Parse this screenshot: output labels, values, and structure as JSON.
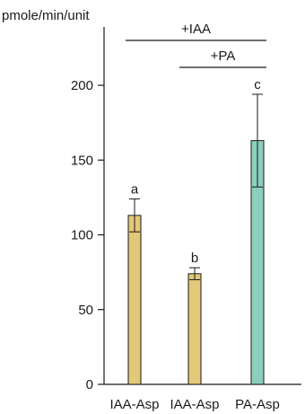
{
  "chart_data": {
    "type": "bar",
    "ylabel": "pmole/min/unit",
    "ylim": [
      0,
      235
    ],
    "yticks": [
      0,
      50,
      100,
      150,
      200
    ],
    "categories": [
      "IAA-Asp",
      "IAA-Asp",
      "PA-Asp"
    ],
    "values": [
      113,
      74,
      163
    ],
    "errors": [
      11,
      4,
      31
    ],
    "significance_letters": [
      "a",
      "b",
      "c"
    ],
    "bar_colors": [
      "#e3c879",
      "#e3c879",
      "#8bcfbf"
    ],
    "treatment_brackets": [
      {
        "label": "+IAA",
        "from": 0,
        "to": 2
      },
      {
        "label": "+PA",
        "from": 1,
        "to": 2
      }
    ],
    "grid": false
  }
}
